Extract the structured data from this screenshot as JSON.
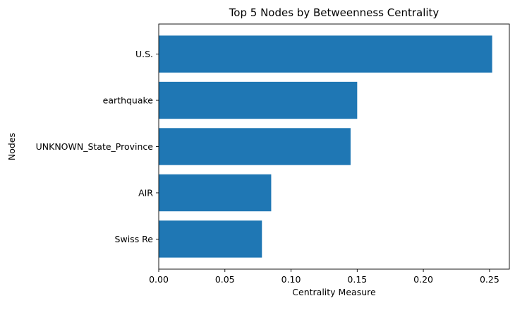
{
  "chart_data": {
    "type": "bar",
    "orientation": "horizontal",
    "title": "Top 5 Nodes by Betweenness Centrality",
    "xlabel": "Centrality Measure",
    "ylabel": "Nodes",
    "categories": [
      "U.S.",
      "earthquake",
      "UNKNOWN_State_Province",
      "AIR",
      "Swiss Re"
    ],
    "values": [
      0.252,
      0.15,
      0.145,
      0.085,
      0.078
    ],
    "xlim": [
      0,
      0.265
    ],
    "xticks": [
      0.0,
      0.05,
      0.1,
      0.15,
      0.2,
      0.25
    ],
    "xtick_labels": [
      "0.00",
      "0.05",
      "0.10",
      "0.15",
      "0.20",
      "0.25"
    ],
    "grid": false,
    "bar_color": "#1f77b4"
  }
}
